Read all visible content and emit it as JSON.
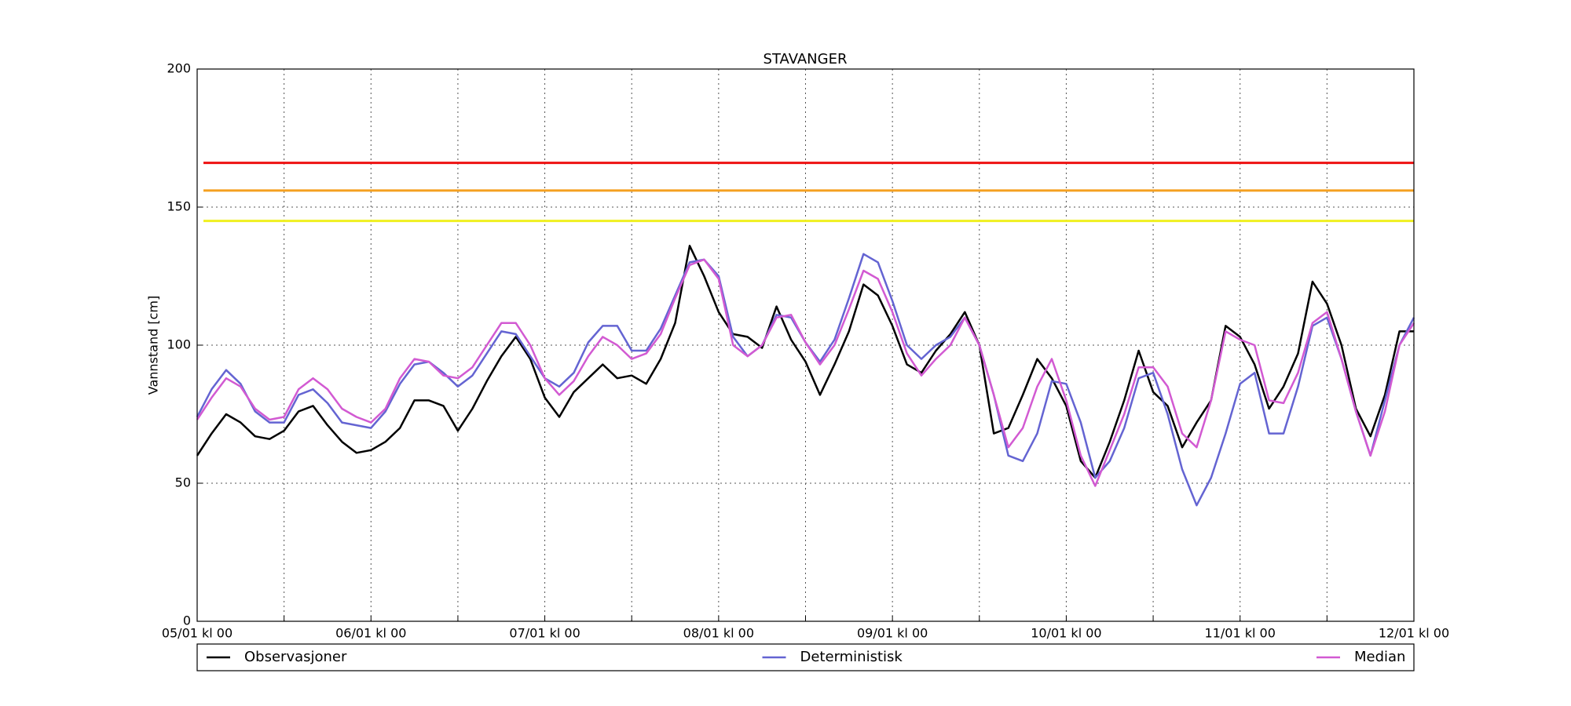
{
  "chart_data": {
    "type": "line",
    "title": "STAVANGER",
    "y_label": "Vannstand [cm]",
    "x": [
      0,
      2,
      4,
      6,
      8,
      10,
      12,
      14,
      16,
      18,
      20,
      22,
      24,
      26,
      28,
      30,
      32,
      34,
      36,
      38,
      40,
      42,
      44,
      46,
      48,
      50,
      52,
      54,
      56,
      58,
      60,
      62,
      64,
      66,
      68,
      70,
      72,
      74,
      76,
      78,
      80,
      82,
      84,
      86,
      88,
      90,
      92,
      94,
      96,
      98,
      100,
      102,
      104,
      106,
      108,
      110,
      112,
      114,
      116,
      118,
      120,
      122,
      124,
      126,
      128,
      130,
      132,
      134,
      136,
      138,
      140,
      142,
      144,
      146,
      148,
      150,
      152,
      154,
      156,
      158,
      160,
      162,
      164,
      166,
      168
    ],
    "series": [
      {
        "name": "Observasjoner",
        "color": "#000000",
        "values": [
          60,
          68,
          75,
          72,
          67,
          66,
          69,
          76,
          78,
          71,
          65,
          61,
          62,
          65,
          70,
          80,
          80,
          78,
          69,
          77,
          87,
          96,
          103,
          95,
          81,
          74,
          83,
          88,
          93,
          88,
          89,
          86,
          95,
          108,
          136,
          125,
          112,
          104,
          103,
          99,
          114,
          102,
          94,
          82,
          93,
          105,
          122,
          118,
          107,
          93,
          90,
          98,
          104,
          112,
          100,
          68,
          70,
          82,
          95,
          88,
          78,
          58,
          52,
          65,
          80,
          98,
          83,
          78,
          63,
          72,
          80,
          107,
          103,
          93,
          77,
          85,
          97,
          123,
          115,
          100,
          77,
          67,
          82,
          105,
          105
        ]
      },
      {
        "name": "Deterministisk",
        "color": "#6464d2",
        "values": [
          74,
          84,
          91,
          86,
          76,
          72,
          72,
          82,
          84,
          79,
          72,
          71,
          70,
          76,
          86,
          93,
          94,
          90,
          85,
          89,
          97,
          105,
          104,
          96,
          88,
          85,
          90,
          101,
          107,
          107,
          98,
          98,
          106,
          118,
          130,
          131,
          125,
          103,
          96,
          100,
          111,
          110,
          101,
          94,
          102,
          117,
          133,
          130,
          116,
          100,
          95,
          100,
          103,
          110,
          100,
          82,
          60,
          58,
          68,
          87,
          86,
          72,
          52,
          58,
          70,
          88,
          90,
          75,
          55,
          42,
          52,
          68,
          86,
          90,
          68,
          68,
          85,
          107,
          110,
          95,
          76,
          60,
          80,
          100,
          110
        ]
      },
      {
        "name": "Median",
        "color": "#d25ad2",
        "values": [
          73,
          81,
          88,
          85,
          77,
          73,
          74,
          84,
          88,
          84,
          77,
          74,
          72,
          77,
          88,
          95,
          94,
          89,
          88,
          92,
          100,
          108,
          108,
          100,
          88,
          82,
          87,
          96,
          103,
          100,
          95,
          97,
          104,
          117,
          129,
          131,
          124,
          100,
          96,
          100,
          110,
          111,
          101,
          93,
          100,
          113,
          127,
          124,
          112,
          97,
          89,
          95,
          100,
          110,
          100,
          82,
          63,
          70,
          85,
          95,
          80,
          60,
          49,
          62,
          75,
          92,
          92,
          85,
          68,
          63,
          80,
          105,
          102,
          100,
          80,
          79,
          90,
          108,
          112,
          95,
          76,
          60,
          76,
          100,
          108
        ]
      }
    ],
    "hlines": [
      {
        "value": 166,
        "color": "#ee1111"
      },
      {
        "value": 156,
        "color": "#f5a020"
      },
      {
        "value": 145,
        "color": "#f0f020"
      }
    ],
    "xlim": [
      0,
      168
    ],
    "xticks": [
      {
        "value": 0,
        "label": "05/01 kl 00"
      },
      {
        "value": 12,
        "label": null
      },
      {
        "value": 24,
        "label": "06/01 kl 00"
      },
      {
        "value": 36,
        "label": null
      },
      {
        "value": 48,
        "label": "07/01 kl 00"
      },
      {
        "value": 60,
        "label": null
      },
      {
        "value": 72,
        "label": "08/01 kl 00"
      },
      {
        "value": 84,
        "label": null
      },
      {
        "value": 96,
        "label": "09/01 kl 00"
      },
      {
        "value": 108,
        "label": null
      },
      {
        "value": 120,
        "label": "10/01 kl 00"
      },
      {
        "value": 132,
        "label": null
      },
      {
        "value": 144,
        "label": "11/01 kl 00"
      },
      {
        "value": 156,
        "label": null
      },
      {
        "value": 168,
        "label": "12/01 kl 00"
      }
    ],
    "ylim": [
      0,
      200
    ],
    "yticks": [
      0,
      50,
      100,
      150,
      200
    ],
    "grid": true,
    "legend": "below"
  }
}
